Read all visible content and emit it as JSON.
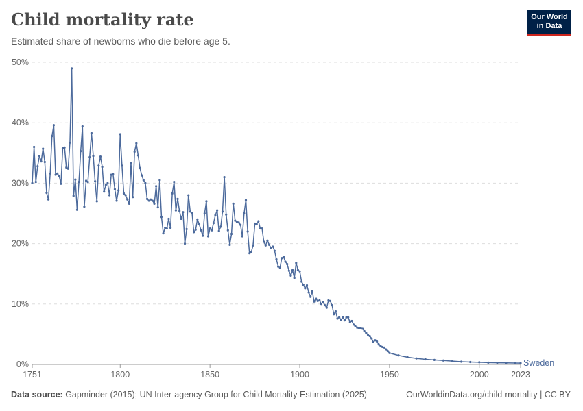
{
  "header": {
    "title": "Child mortality rate",
    "subtitle": "Estimated share of newborns who die before age 5."
  },
  "logo": {
    "line1": "Our World",
    "line2": "in Data"
  },
  "footer": {
    "source_label": "Data source:",
    "source_text": " Gapminder (2015); UN Inter-agency Group for Child Mortality Estimation (2025)",
    "url_text": "OurWorldinData.org/child-mortality | CC BY"
  },
  "colors": {
    "line": "#4c6a9c",
    "grid": "#dddddd",
    "axis": "#999999",
    "tick_text": "#666666"
  },
  "chart_data": {
    "type": "line",
    "title": "Child mortality rate",
    "subtitle": "Estimated share of newborns who die before age 5.",
    "xlabel": "",
    "ylabel": "",
    "xlim": [
      1751,
      2023
    ],
    "ylim": [
      0,
      50
    ],
    "x_ticks": [
      1751,
      1800,
      1850,
      1900,
      1950,
      2000,
      2023
    ],
    "y_ticks": [
      0,
      10,
      20,
      30,
      40,
      50
    ],
    "y_tick_labels": [
      "0%",
      "10%",
      "20%",
      "30%",
      "40%",
      "50%"
    ],
    "grid": true,
    "series": [
      {
        "name": "Sweden",
        "x": [
          1751,
          1752,
          1753,
          1754,
          1755,
          1756,
          1757,
          1758,
          1759,
          1760,
          1761,
          1762,
          1763,
          1764,
          1765,
          1766,
          1767,
          1768,
          1769,
          1770,
          1771,
          1772,
          1773,
          1774,
          1775,
          1776,
          1777,
          1778,
          1779,
          1780,
          1781,
          1782,
          1783,
          1784,
          1785,
          1786,
          1787,
          1788,
          1789,
          1790,
          1791,
          1792,
          1793,
          1794,
          1795,
          1796,
          1797,
          1798,
          1799,
          1800,
          1801,
          1802,
          1803,
          1804,
          1805,
          1806,
          1807,
          1808,
          1809,
          1810,
          1811,
          1812,
          1813,
          1814,
          1815,
          1816,
          1817,
          1818,
          1819,
          1820,
          1821,
          1822,
          1823,
          1824,
          1825,
          1826,
          1827,
          1828,
          1829,
          1830,
          1831,
          1832,
          1833,
          1834,
          1835,
          1836,
          1837,
          1838,
          1839,
          1840,
          1841,
          1842,
          1843,
          1844,
          1845,
          1846,
          1847,
          1848,
          1849,
          1850,
          1851,
          1852,
          1853,
          1854,
          1855,
          1856,
          1857,
          1858,
          1859,
          1860,
          1861,
          1862,
          1863,
          1864,
          1865,
          1866,
          1867,
          1868,
          1869,
          1870,
          1871,
          1872,
          1873,
          1874,
          1875,
          1876,
          1877,
          1878,
          1879,
          1880,
          1881,
          1882,
          1883,
          1884,
          1885,
          1886,
          1887,
          1888,
          1889,
          1890,
          1891,
          1892,
          1893,
          1894,
          1895,
          1896,
          1897,
          1898,
          1899,
          1900,
          1901,
          1902,
          1903,
          1904,
          1905,
          1906,
          1907,
          1908,
          1909,
          1910,
          1911,
          1912,
          1913,
          1914,
          1915,
          1916,
          1917,
          1918,
          1919,
          1920,
          1921,
          1922,
          1923,
          1924,
          1925,
          1926,
          1927,
          1928,
          1929,
          1930,
          1931,
          1932,
          1933,
          1934,
          1935,
          1936,
          1937,
          1938,
          1939,
          1940,
          1941,
          1942,
          1943,
          1944,
          1945,
          1946,
          1947,
          1948,
          1949,
          1950,
          1955,
          1960,
          1965,
          1970,
          1975,
          1980,
          1985,
          1990,
          1995,
          2000,
          2005,
          2010,
          2015,
          2020,
          2023
        ],
        "values": [
          30.0,
          36.0,
          30.2,
          32.8,
          34.5,
          33.6,
          35.7,
          33.5,
          28.4,
          27.3,
          31.6,
          37.8,
          39.6,
          31.4,
          31.6,
          31.2,
          29.9,
          35.8,
          35.9,
          32.6,
          32.4,
          36.7,
          49.0,
          27.9,
          30.6,
          25.6,
          30.2,
          35.3,
          39.4,
          26.1,
          30.4,
          30.2,
          34.3,
          38.3,
          34.5,
          30.3,
          27.0,
          32.9,
          34.4,
          32.7,
          28.6,
          29.7,
          30.0,
          28.0,
          31.4,
          31.5,
          29.0,
          27.1,
          28.8,
          38.1,
          32.9,
          28.3,
          28.0,
          27.3,
          26.6,
          33.3,
          27.7,
          35.2,
          36.6,
          34.6,
          32.5,
          31.3,
          30.5,
          30.0,
          27.4,
          27.1,
          27.3,
          27.1,
          26.6,
          29.5,
          26.0,
          30.5,
          24.4,
          21.7,
          22.6,
          22.5,
          24.1,
          22.6,
          28.3,
          30.2,
          25.5,
          27.4,
          25.4,
          24.1,
          25.2,
          20.0,
          22.4,
          28.0,
          25.3,
          25.1,
          21.9,
          22.3,
          24.0,
          23.2,
          22.2,
          21.3,
          25.0,
          27.0,
          21.2,
          22.5,
          22.2,
          23.4,
          24.7,
          25.5,
          22.1,
          22.8,
          25.3,
          31.0,
          24.8,
          22.2,
          19.8,
          21.6,
          26.6,
          23.8,
          23.6,
          23.5,
          23.1,
          21.2,
          25.0,
          27.2,
          22.0,
          18.4,
          18.6,
          19.7,
          23.3,
          23.2,
          23.7,
          22.5,
          22.5,
          20.3,
          19.7,
          20.5,
          19.8,
          19.3,
          19.5,
          18.8,
          17.4,
          16.2,
          16.0,
          17.6,
          17.8,
          17.0,
          16.6,
          15.5,
          14.7,
          15.6,
          14.3,
          16.8,
          15.6,
          15.4,
          13.7,
          13.2,
          12.6,
          13.1,
          11.9,
          11.2,
          12.1,
          10.4,
          10.9,
          10.5,
          10.6,
          10.0,
          10.3,
          9.8,
          9.4,
          10.6,
          10.5,
          9.8,
          8.3,
          8.8,
          7.6,
          7.8,
          7.4,
          7.8,
          7.3,
          7.8,
          7.8,
          7.0,
          7.2,
          6.6,
          6.3,
          6.1,
          6.0,
          6.0,
          5.9,
          5.5,
          5.2,
          4.9,
          4.7,
          4.3,
          3.7,
          4.0,
          3.8,
          3.3,
          3.1,
          2.9,
          2.8,
          2.5,
          2.2,
          1.9,
          1.5,
          1.2,
          1.0,
          0.85,
          0.75,
          0.65,
          0.55,
          0.45,
          0.4,
          0.35,
          0.3,
          0.27,
          0.25,
          0.22,
          0.21
        ]
      }
    ]
  }
}
